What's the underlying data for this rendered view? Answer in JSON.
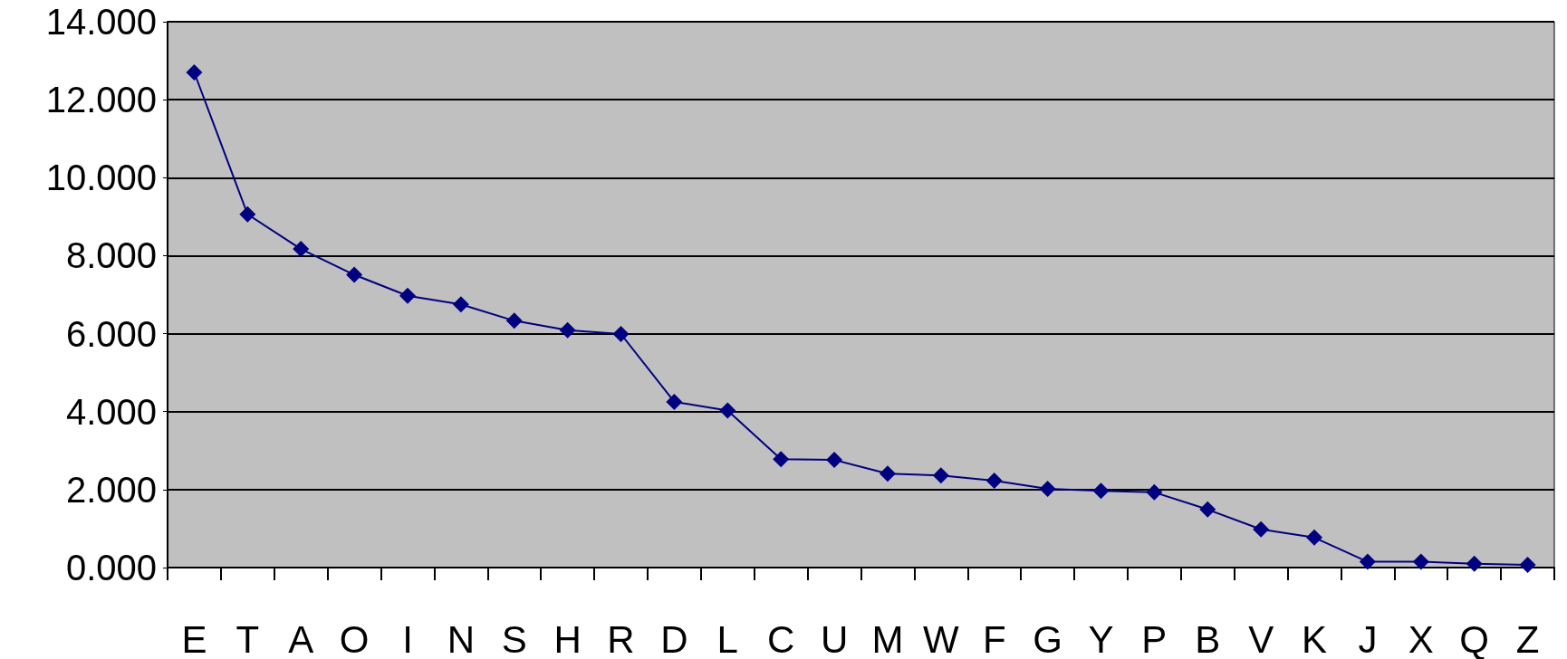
{
  "chart_data": {
    "type": "line",
    "categories": [
      "E",
      "T",
      "A",
      "O",
      "I",
      "N",
      "S",
      "H",
      "R",
      "D",
      "L",
      "C",
      "U",
      "M",
      "W",
      "F",
      "G",
      "Y",
      "P",
      "B",
      "V",
      "K",
      "J",
      "X",
      "Q",
      "Z"
    ],
    "series": [
      {
        "color": "#000080",
        "values": [
          12.7,
          9.06,
          8.17,
          7.51,
          6.97,
          6.75,
          6.33,
          6.09,
          5.99,
          4.25,
          4.03,
          2.78,
          2.76,
          2.41,
          2.36,
          2.23,
          2.02,
          1.97,
          1.93,
          1.49,
          0.98,
          0.77,
          0.15,
          0.15,
          0.1,
          0.07
        ]
      }
    ],
    "ylim": [
      0,
      14
    ],
    "yticks": [
      {
        "value": 0,
        "label": "0.000"
      },
      {
        "value": 2,
        "label": "2.000"
      },
      {
        "value": 4,
        "label": "4.000"
      },
      {
        "value": 6,
        "label": "6.000"
      },
      {
        "value": 8,
        "label": "8.000"
      },
      {
        "value": 10,
        "label": "10.000"
      },
      {
        "value": 12,
        "label": "12.000"
      },
      {
        "value": 14,
        "label": "14.000"
      }
    ],
    "grid": "y",
    "marker": "diamond",
    "line_style": "solid"
  }
}
